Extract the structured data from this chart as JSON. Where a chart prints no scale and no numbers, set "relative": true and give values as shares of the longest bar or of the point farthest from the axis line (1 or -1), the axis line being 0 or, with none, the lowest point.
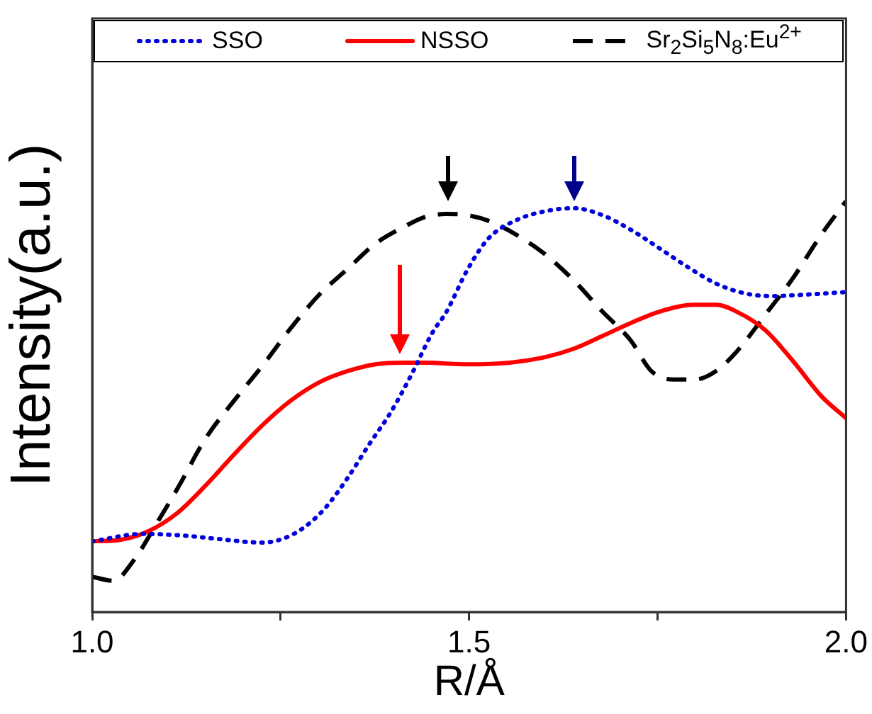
{
  "chart_data": {
    "type": "line",
    "xlabel": "R/Å",
    "ylabel": "Intensity(a.u.)",
    "relative": true,
    "xlim": [
      1.0,
      2.0
    ],
    "xticks": [
      {
        "value": 1.0,
        "label": "1.0"
      },
      {
        "value": 1.25,
        "label": null
      },
      {
        "value": 1.5,
        "label": "1.5"
      },
      {
        "value": 1.75,
        "label": null
      },
      {
        "value": 2.0,
        "label": "2.0"
      }
    ],
    "grid": false,
    "legend": "top",
    "marker": "none",
    "series": [
      {
        "name": "SSO",
        "color": "#0000dd",
        "line_style": "dotted",
        "x": [
          1.0,
          1.066,
          1.122,
          1.16,
          1.226,
          1.254,
          1.282,
          1.31,
          1.338,
          1.367,
          1.395,
          1.423,
          1.451,
          1.47,
          1.498,
          1.526,
          1.564,
          1.602,
          1.639,
          1.677,
          1.714,
          1.752,
          1.789,
          1.827,
          1.865,
          1.902,
          1.94,
          1.977,
          2.0
        ],
        "values": [
          0.172,
          0.19,
          0.186,
          0.179,
          0.169,
          0.179,
          0.207,
          0.255,
          0.324,
          0.407,
          0.483,
          0.576,
          0.679,
          0.731,
          0.834,
          0.91,
          0.955,
          0.976,
          0.983,
          0.966,
          0.931,
          0.886,
          0.841,
          0.8,
          0.776,
          0.769,
          0.772,
          0.776,
          0.779
        ]
      },
      {
        "name": "NSSO",
        "color": "#ff0000",
        "line_style": "solid",
        "x": [
          1.0,
          1.038,
          1.075,
          1.113,
          1.15,
          1.188,
          1.226,
          1.263,
          1.301,
          1.338,
          1.376,
          1.414,
          1.442,
          1.498,
          1.554,
          1.602,
          1.639,
          1.677,
          1.714,
          1.752,
          1.799,
          1.827,
          1.855,
          1.893,
          1.93,
          1.968,
          2.0
        ],
        "values": [
          0.172,
          0.176,
          0.197,
          0.241,
          0.307,
          0.383,
          0.455,
          0.514,
          0.559,
          0.586,
          0.603,
          0.607,
          0.607,
          0.603,
          0.607,
          0.621,
          0.641,
          0.672,
          0.703,
          0.731,
          0.748,
          0.748,
          0.731,
          0.686,
          0.61,
          0.524,
          0.472
        ]
      },
      {
        "name": "Sr$_{2}$Si$_{5}$N$_{8}$:Eu$^{2+}$",
        "color": "#000000",
        "line_style": "dashed",
        "x": [
          1.0,
          1.028,
          1.056,
          1.085,
          1.113,
          1.15,
          1.188,
          1.226,
          1.263,
          1.301,
          1.338,
          1.376,
          1.414,
          1.442,
          1.47,
          1.498,
          1.526,
          1.564,
          1.602,
          1.639,
          1.677,
          1.714,
          1.742,
          1.771,
          1.799,
          1.827,
          1.855,
          1.893,
          1.93,
          1.968,
          2.0
        ],
        "values": [
          0.086,
          0.076,
          0.128,
          0.214,
          0.3,
          0.421,
          0.514,
          0.6,
          0.69,
          0.772,
          0.834,
          0.897,
          0.938,
          0.962,
          0.969,
          0.966,
          0.952,
          0.917,
          0.869,
          0.807,
          0.731,
          0.662,
          0.586,
          0.566,
          0.566,
          0.586,
          0.634,
          0.724,
          0.814,
          0.921,
          1.0
        ]
      }
    ]
  }
}
